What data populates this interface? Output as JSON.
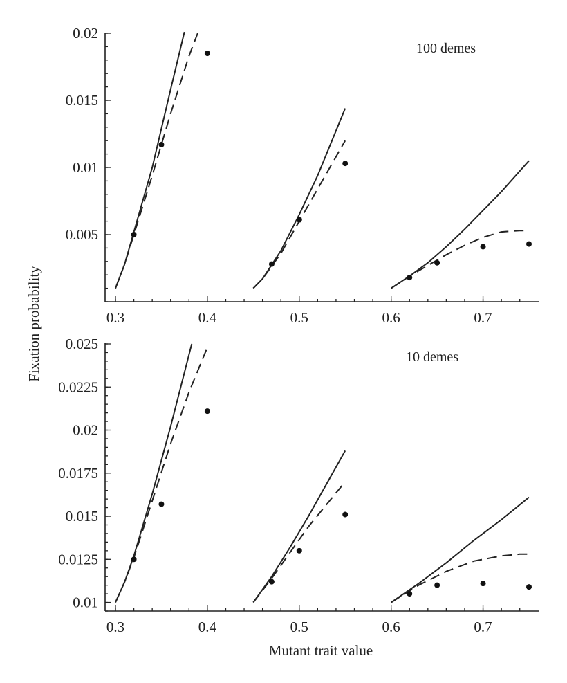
{
  "chart_data": [
    {
      "type": "line",
      "annotation": "100 demes",
      "xlim": [
        0.3,
        0.75
      ],
      "ylim": [
        0,
        0.02
      ],
      "xticks": [
        {
          "value": 0.3,
          "label": "0.3"
        },
        {
          "value": 0.4,
          "label": "0.4"
        },
        {
          "value": 0.5,
          "label": "0.5"
        },
        {
          "value": 0.6,
          "label": "0.6"
        },
        {
          "value": 0.7,
          "label": "0.7"
        }
      ],
      "yticks": [
        {
          "value": 0.005,
          "label": "0.005"
        },
        {
          "value": 0.01,
          "label": "0.01"
        },
        {
          "value": 0.015,
          "label": "0.015"
        },
        {
          "value": 0.02,
          "label": "0.02"
        }
      ],
      "groups": [
        {
          "solid": {
            "x": [
              0.3,
              0.31,
              0.32,
              0.34,
              0.36,
              0.375
            ],
            "y": [
              0.001,
              0.0028,
              0.0052,
              0.01,
              0.0158,
              0.0201
            ]
          },
          "dashed": {
            "x": [
              0.3,
              0.31,
              0.32,
              0.34,
              0.36,
              0.38,
              0.39
            ],
            "y": [
              0.001,
              0.0028,
              0.005,
              0.0094,
              0.014,
              0.0183,
              0.0201
            ]
          },
          "points": {
            "x": [
              0.32,
              0.35,
              0.4
            ],
            "y": [
              0.005,
              0.0117,
              0.0185
            ]
          }
        },
        {
          "solid": {
            "x": [
              0.45,
              0.46,
              0.48,
              0.5,
              0.52,
              0.55
            ],
            "y": [
              0.001,
              0.0017,
              0.0038,
              0.0065,
              0.0094,
              0.0144
            ]
          },
          "dashed": {
            "x": [
              0.45,
              0.46,
              0.48,
              0.5,
              0.52,
              0.55
            ],
            "y": [
              0.001,
              0.0017,
              0.0036,
              0.006,
              0.0084,
              0.012
            ]
          },
          "points": {
            "x": [
              0.47,
              0.5,
              0.55
            ],
            "y": [
              0.0028,
              0.0061,
              0.0103
            ]
          }
        },
        {
          "solid": {
            "x": [
              0.6,
              0.62,
              0.64,
              0.66,
              0.68,
              0.7,
              0.72,
              0.75
            ],
            "y": [
              0.001,
              0.0019,
              0.0029,
              0.0041,
              0.0054,
              0.0068,
              0.0082,
              0.0105
            ]
          },
          "dashed": {
            "x": [
              0.6,
              0.62,
              0.64,
              0.66,
              0.68,
              0.7,
              0.72,
              0.74,
              0.75
            ],
            "y": [
              0.001,
              0.0019,
              0.0027,
              0.0035,
              0.0042,
              0.0048,
              0.0052,
              0.0053,
              0.0053
            ]
          },
          "points": {
            "x": [
              0.62,
              0.65,
              0.7,
              0.75
            ],
            "y": [
              0.0018,
              0.0029,
              0.0041,
              0.0043
            ]
          }
        }
      ]
    },
    {
      "type": "line",
      "annotation": "10 demes",
      "xlim": [
        0.3,
        0.75
      ],
      "ylim": [
        0.0095,
        0.025
      ],
      "xticks": [
        {
          "value": 0.3,
          "label": "0.3"
        },
        {
          "value": 0.4,
          "label": "0.4"
        },
        {
          "value": 0.5,
          "label": "0.5"
        },
        {
          "value": 0.6,
          "label": "0.6"
        },
        {
          "value": 0.7,
          "label": "0.7"
        }
      ],
      "yticks": [
        {
          "value": 0.01,
          "label": "0.01"
        },
        {
          "value": 0.0125,
          "label": "0.0125"
        },
        {
          "value": 0.015,
          "label": "0.015"
        },
        {
          "value": 0.0175,
          "label": "0.0175"
        },
        {
          "value": 0.02,
          "label": "0.02"
        },
        {
          "value": 0.0225,
          "label": "0.0225"
        },
        {
          "value": 0.025,
          "label": "0.025"
        }
      ],
      "groups": [
        {
          "solid": {
            "x": [
              0.3,
              0.31,
              0.32,
              0.34,
              0.36,
              0.383
            ],
            "y": [
              0.01,
              0.0112,
              0.0127,
              0.0163,
              0.0202,
              0.025
            ]
          },
          "dashed": {
            "x": [
              0.3,
              0.31,
              0.32,
              0.34,
              0.36,
              0.38,
              0.4
            ],
            "y": [
              0.01,
              0.0112,
              0.0126,
              0.0159,
              0.0192,
              0.0222,
              0.0248
            ]
          },
          "points": {
            "x": [
              0.32,
              0.35,
              0.4
            ],
            "y": [
              0.0125,
              0.0157,
              0.0211
            ]
          }
        },
        {
          "solid": {
            "x": [
              0.45,
              0.47,
              0.49,
              0.51,
              0.53,
              0.55
            ],
            "y": [
              0.01,
              0.0115,
              0.0132,
              0.015,
              0.0169,
              0.0188
            ]
          },
          "dashed": {
            "x": [
              0.45,
              0.47,
              0.49,
              0.51,
              0.53,
              0.55
            ],
            "y": [
              0.01,
              0.0114,
              0.0129,
              0.0144,
              0.0157,
              0.017
            ]
          },
          "points": {
            "x": [
              0.47,
              0.5,
              0.55
            ],
            "y": [
              0.0112,
              0.013,
              0.0151
            ]
          }
        },
        {
          "solid": {
            "x": [
              0.6,
              0.63,
              0.66,
              0.69,
              0.72,
              0.75
            ],
            "y": [
              0.01,
              0.0111,
              0.0123,
              0.0136,
              0.0148,
              0.0161
            ]
          },
          "dashed": {
            "x": [
              0.6,
              0.63,
              0.66,
              0.69,
              0.72,
              0.74,
              0.75
            ],
            "y": [
              0.01,
              0.011,
              0.0118,
              0.0124,
              0.0127,
              0.0128,
              0.0128
            ]
          },
          "points": {
            "x": [
              0.62,
              0.65,
              0.7,
              0.75
            ],
            "y": [
              0.0105,
              0.011,
              0.0111,
              0.0109
            ]
          }
        }
      ]
    }
  ],
  "shared_labels": {
    "xlabel": "Mutant trait value",
    "ylabel": "Fixation probability"
  }
}
